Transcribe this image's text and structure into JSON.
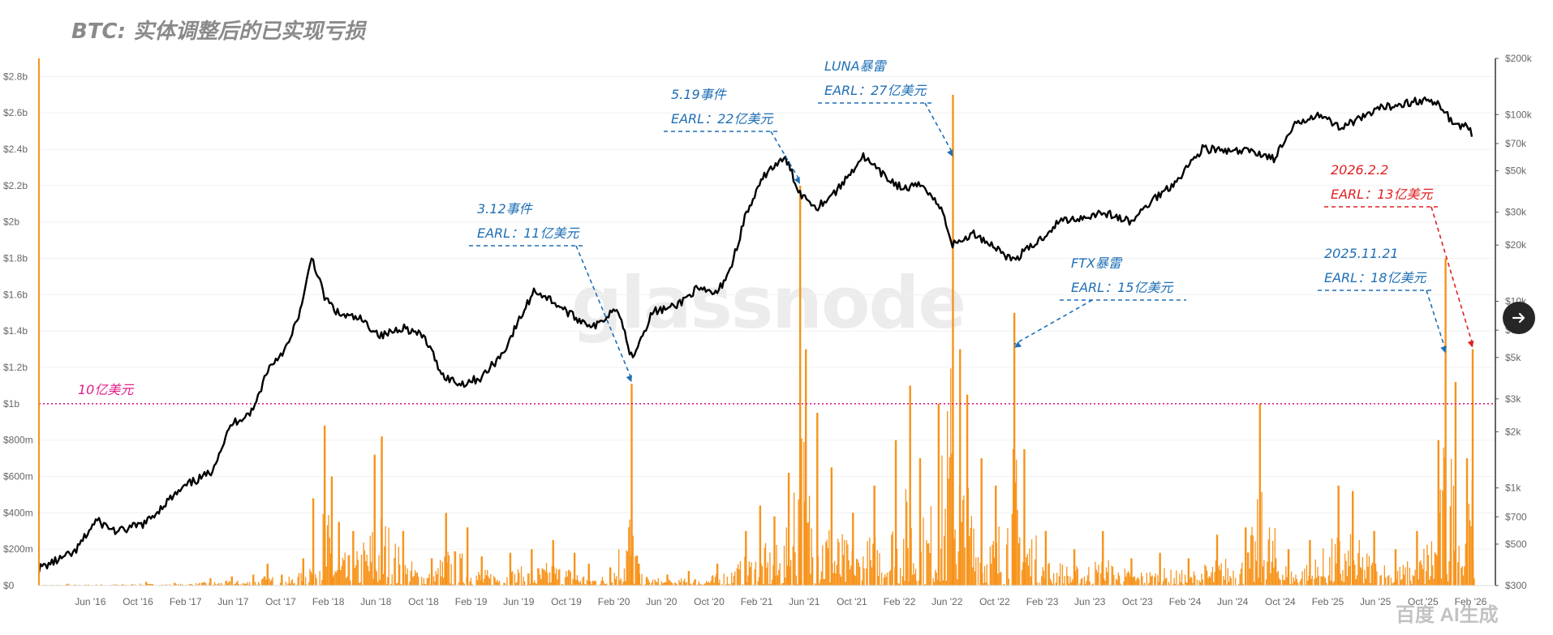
{
  "title": "BTC: 实体调整后的已实现亏损",
  "watermark": "glassnode",
  "corner_mark": "百度 AI生成",
  "next_button": {
    "icon": "arrow-right-icon"
  },
  "colors": {
    "bars": "#f7931a",
    "price": "#000000",
    "threshold": "#e0208a",
    "annotation": "#1f6fb5",
    "highlight": "#e02020"
  },
  "chart_data": {
    "type": "bar",
    "title": "BTC: 实体调整后的已实现亏损",
    "x_ticks": [
      "Jun '16",
      "Oct '16",
      "Feb '17",
      "Jun '17",
      "Oct '17",
      "Feb '18",
      "Jun '18",
      "Oct '18",
      "Feb '19",
      "Jun '19",
      "Oct '19",
      "Feb '20",
      "Jun '20",
      "Oct '20",
      "Feb '21",
      "Jun '21",
      "Oct '21",
      "Feb '22",
      "Jun '22",
      "Oct '22",
      "Feb '23",
      "Jun '23",
      "Oct '23",
      "Feb '24",
      "Jun '24",
      "Oct '24",
      "Feb '25",
      "Jun '25",
      "Oct '25",
      "Feb '26"
    ],
    "x_range": [
      2016.05,
      2026.25
    ],
    "y_left": {
      "ticks": [
        "$0",
        "$200m",
        "$400m",
        "$600m",
        "$800m",
        "$1b",
        "$1.2b",
        "$1.4b",
        "$1.6b",
        "$1.8b",
        "$2b",
        "$2.2b",
        "$2.4b",
        "$2.6b",
        "$2.8b"
      ],
      "ylim": [
        0,
        2.9
      ],
      "unit": "billion USD"
    },
    "y_right": {
      "scale": "log",
      "ticks": [
        {
          "label": "$300",
          "value": 300
        },
        {
          "label": "$500",
          "value": 500
        },
        {
          "label": "$700",
          "value": 700
        },
        {
          "label": "$1k",
          "value": 1000
        },
        {
          "label": "$2k",
          "value": 2000
        },
        {
          "label": "$3k",
          "value": 3000
        },
        {
          "label": "$5k",
          "value": 5000
        },
        {
          "label": "$7k",
          "value": 7000
        },
        {
          "label": "$10k",
          "value": 10000
        },
        {
          "label": "$20k",
          "value": 20000
        },
        {
          "label": "$30k",
          "value": 30000
        },
        {
          "label": "$50k",
          "value": 50000
        },
        {
          "label": "$70k",
          "value": 70000
        },
        {
          "label": "$100k",
          "value": 100000
        },
        {
          "label": "$200k",
          "value": 200000
        }
      ],
      "ylim": [
        300,
        200000
      ]
    },
    "series": [
      {
        "type": "bar",
        "axis": "left",
        "points": [
          [
            2016.25,
            0.01
          ],
          [
            2016.8,
            0.02
          ],
          [
            2017.0,
            0.015
          ],
          [
            2017.25,
            0.04
          ],
          [
            2017.4,
            0.05
          ],
          [
            2017.55,
            0.06
          ],
          [
            2017.65,
            0.12
          ],
          [
            2017.75,
            0.06
          ],
          [
            2017.9,
            0.15
          ],
          [
            2017.97,
            0.48
          ],
          [
            2018.05,
            0.88
          ],
          [
            2018.1,
            0.6
          ],
          [
            2018.15,
            0.35
          ],
          [
            2018.25,
            0.3
          ],
          [
            2018.4,
            0.72
          ],
          [
            2018.45,
            0.82
          ],
          [
            2018.6,
            0.3
          ],
          [
            2018.8,
            0.15
          ],
          [
            2018.9,
            0.4
          ],
          [
            2019.05,
            0.32
          ],
          [
            2019.15,
            0.16
          ],
          [
            2019.35,
            0.18
          ],
          [
            2019.5,
            0.2
          ],
          [
            2019.65,
            0.25
          ],
          [
            2019.8,
            0.18
          ],
          [
            2019.9,
            0.12
          ],
          [
            2020.05,
            0.1
          ],
          [
            2020.2,
            1.11
          ],
          [
            2020.25,
            0.12
          ],
          [
            2020.45,
            0.06
          ],
          [
            2020.6,
            0.08
          ],
          [
            2020.8,
            0.12
          ],
          [
            2021.0,
            0.3
          ],
          [
            2021.1,
            0.44
          ],
          [
            2021.2,
            0.38
          ],
          [
            2021.3,
            0.62
          ],
          [
            2021.38,
            2.2
          ],
          [
            2021.42,
            1.3
          ],
          [
            2021.5,
            0.95
          ],
          [
            2021.6,
            0.65
          ],
          [
            2021.75,
            0.4
          ],
          [
            2021.9,
            0.55
          ],
          [
            2022.05,
            0.8
          ],
          [
            2022.15,
            1.1
          ],
          [
            2022.22,
            0.7
          ],
          [
            2022.35,
            1.0
          ],
          [
            2022.45,
            2.7
          ],
          [
            2022.5,
            1.3
          ],
          [
            2022.55,
            1.05
          ],
          [
            2022.65,
            0.7
          ],
          [
            2022.75,
            0.55
          ],
          [
            2022.88,
            1.5
          ],
          [
            2022.95,
            0.75
          ],
          [
            2023.1,
            0.3
          ],
          [
            2023.3,
            0.2
          ],
          [
            2023.5,
            0.3
          ],
          [
            2023.7,
            0.15
          ],
          [
            2023.9,
            0.18
          ],
          [
            2024.1,
            0.15
          ],
          [
            2024.3,
            0.28
          ],
          [
            2024.5,
            0.32
          ],
          [
            2024.6,
            1.0
          ],
          [
            2024.8,
            0.2
          ],
          [
            2024.95,
            0.25
          ],
          [
            2025.15,
            0.55
          ],
          [
            2025.25,
            0.52
          ],
          [
            2025.4,
            0.3
          ],
          [
            2025.55,
            0.2
          ],
          [
            2025.7,
            0.3
          ],
          [
            2025.85,
            0.8
          ],
          [
            2025.9,
            1.8
          ],
          [
            2025.97,
            1.12
          ],
          [
            2026.05,
            0.7
          ],
          [
            2026.09,
            1.3
          ]
        ]
      },
      {
        "type": "line",
        "axis": "right",
        "points": [
          [
            2016.05,
            370
          ],
          [
            2016.3,
            450
          ],
          [
            2016.45,
            670
          ],
          [
            2016.6,
            580
          ],
          [
            2016.8,
            650
          ],
          [
            2016.95,
            850
          ],
          [
            2017.1,
            1050
          ],
          [
            2017.25,
            1200
          ],
          [
            2017.4,
            2200
          ],
          [
            2017.55,
            2600
          ],
          [
            2017.65,
            4300
          ],
          [
            2017.8,
            5900
          ],
          [
            2017.9,
            10000
          ],
          [
            2017.96,
            17500
          ],
          [
            2018.05,
            10500
          ],
          [
            2018.15,
            8500
          ],
          [
            2018.3,
            8000
          ],
          [
            2018.45,
            6500
          ],
          [
            2018.6,
            7300
          ],
          [
            2018.75,
            6400
          ],
          [
            2018.88,
            4000
          ],
          [
            2019.0,
            3600
          ],
          [
            2019.15,
            3900
          ],
          [
            2019.3,
            5300
          ],
          [
            2019.45,
            9000
          ],
          [
            2019.52,
            11500
          ],
          [
            2019.65,
            10000
          ],
          [
            2019.8,
            8200
          ],
          [
            2019.95,
            7300
          ],
          [
            2020.1,
            9500
          ],
          [
            2020.2,
            5000
          ],
          [
            2020.35,
            8800
          ],
          [
            2020.5,
            9300
          ],
          [
            2020.65,
            11500
          ],
          [
            2020.8,
            11000
          ],
          [
            2020.9,
            15500
          ],
          [
            2021.0,
            29000
          ],
          [
            2021.15,
            50000
          ],
          [
            2021.28,
            58000
          ],
          [
            2021.38,
            38000
          ],
          [
            2021.5,
            32000
          ],
          [
            2021.65,
            40000
          ],
          [
            2021.82,
            60000
          ],
          [
            2021.95,
            48000
          ],
          [
            2022.1,
            40000
          ],
          [
            2022.25,
            42000
          ],
          [
            2022.38,
            30000
          ],
          [
            2022.45,
            20000
          ],
          [
            2022.6,
            23000
          ],
          [
            2022.75,
            19500
          ],
          [
            2022.87,
            16500
          ],
          [
            2023.05,
            21000
          ],
          [
            2023.2,
            27000
          ],
          [
            2023.35,
            28000
          ],
          [
            2023.5,
            30000
          ],
          [
            2023.7,
            26500
          ],
          [
            2023.85,
            35000
          ],
          [
            2024.0,
            43000
          ],
          [
            2024.2,
            66000
          ],
          [
            2024.4,
            63000
          ],
          [
            2024.55,
            64000
          ],
          [
            2024.7,
            58000
          ],
          [
            2024.85,
            88000
          ],
          [
            2025.0,
            102000
          ],
          [
            2025.15,
            86000
          ],
          [
            2025.3,
            94000
          ],
          [
            2025.45,
            108000
          ],
          [
            2025.6,
            115000
          ],
          [
            2025.75,
            120000
          ],
          [
            2025.88,
            110000
          ],
          [
            2025.95,
            90000
          ],
          [
            2026.05,
            86000
          ],
          [
            2026.09,
            78000
          ]
        ]
      }
    ],
    "threshold": {
      "value": 1.0,
      "label": "10亿美元"
    },
    "annotations": [
      {
        "title": "3.12事件",
        "sub": "EARL：11亿美元",
        "color": "annotation",
        "target": [
          2020.2,
          1.11
        ]
      },
      {
        "title": "5.19事件",
        "sub": "EARL：22亿美元",
        "color": "annotation",
        "target": [
          2021.38,
          2.2
        ]
      },
      {
        "title": "LUNA暴雷",
        "sub": "EARL：27亿美元",
        "color": "annotation",
        "target": [
          2022.45,
          2.35
        ]
      },
      {
        "title": "FTX暴雷",
        "sub": "EARL：15亿美元",
        "color": "annotation",
        "target": [
          2022.88,
          1.3
        ]
      },
      {
        "title": "2025.11.21",
        "sub": "EARL：18亿美元",
        "color": "annotation",
        "target": [
          2025.9,
          1.27
        ]
      },
      {
        "title": "2026.2.2",
        "sub": "EARL：13亿美元",
        "color": "highlight",
        "target": [
          2026.09,
          1.3
        ]
      }
    ]
  }
}
